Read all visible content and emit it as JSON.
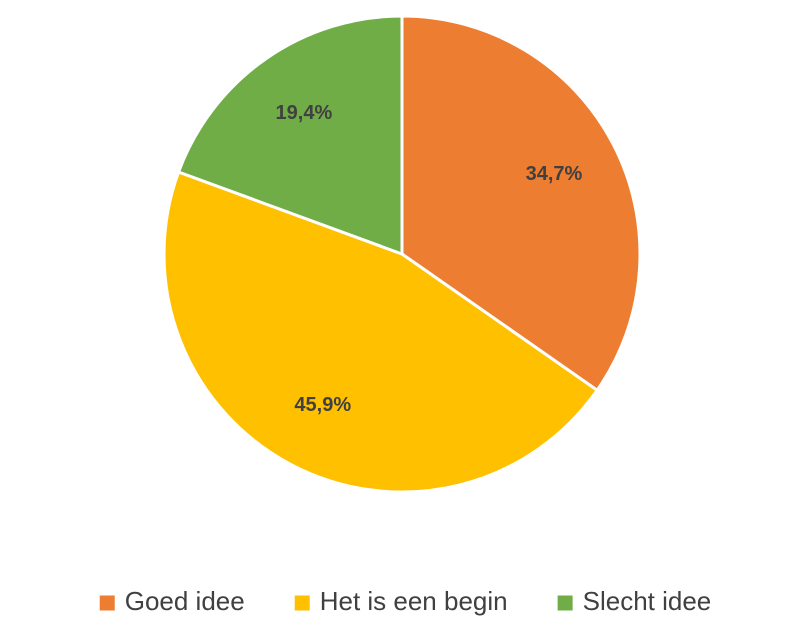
{
  "chart_data": {
    "type": "pie",
    "categories": [
      "Goed idee",
      "Het is een begin",
      "Slecht idee"
    ],
    "values": [
      34.7,
      45.9,
      19.4
    ],
    "value_labels": [
      "34,7%",
      "45,9%",
      "19,4%"
    ],
    "colors": [
      "#ed7d31",
      "#ffc000",
      "#70ad47"
    ],
    "legend": "bottom"
  }
}
